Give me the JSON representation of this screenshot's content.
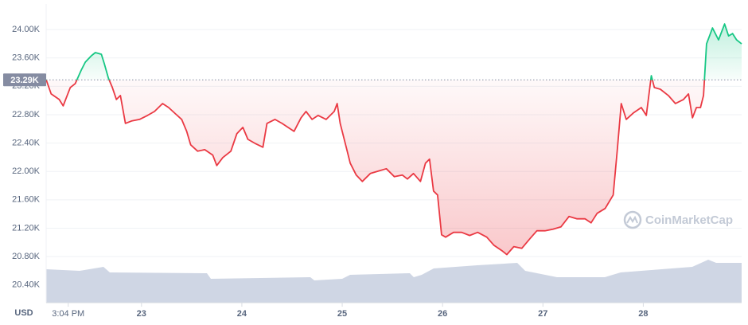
{
  "chart_data": {
    "type": "line",
    "currency": "USD",
    "watermark": "CoinMarketCap",
    "color_up": "#16c784",
    "color_down": "#ea3943",
    "grid": true,
    "reference": {
      "value": 23290,
      "label": "23.29K"
    },
    "xlim": [
      22.05,
      28.98
    ],
    "xticks": [
      {
        "value": 22.27,
        "label": "3:04 PM"
      },
      23,
      24,
      25,
      26,
      27,
      28
    ],
    "ylim": [
      20150,
      24360
    ],
    "yticks": [
      {
        "value": 20400,
        "label": "20.40K"
      },
      {
        "value": 20800,
        "label": "20.80K"
      },
      {
        "value": 21200,
        "label": "21.20K"
      },
      {
        "value": 21600,
        "label": "21.60K"
      },
      {
        "value": 22000,
        "label": "22.00K"
      },
      {
        "value": 22400,
        "label": "22.40K"
      },
      {
        "value": 22800,
        "label": "22.80K"
      },
      {
        "value": 23200,
        "label": "23.20K"
      },
      {
        "value": 23600,
        "label": "23.60K"
      },
      {
        "value": 24000,
        "label": "24.00K"
      }
    ],
    "x": [
      22.05,
      22.1,
      22.18,
      22.22,
      22.29,
      22.34,
      22.4,
      22.44,
      22.5,
      22.54,
      22.6,
      22.63,
      22.67,
      22.71,
      22.75,
      22.79,
      22.84,
      22.9,
      22.98,
      23.06,
      23.13,
      23.21,
      23.27,
      23.33,
      23.4,
      23.45,
      23.49,
      23.56,
      23.63,
      23.71,
      23.75,
      23.81,
      23.89,
      23.95,
      24.01,
      24.06,
      24.13,
      24.21,
      24.25,
      24.33,
      24.4,
      24.46,
      24.52,
      24.59,
      24.64,
      24.7,
      24.76,
      24.84,
      24.92,
      24.95,
      24.98,
      25.04,
      25.08,
      25.14,
      25.2,
      25.28,
      25.36,
      25.44,
      25.52,
      25.6,
      25.65,
      25.71,
      25.78,
      25.83,
      25.87,
      25.91,
      25.95,
      25.99,
      26.03,
      26.11,
      26.19,
      26.27,
      26.35,
      26.44,
      26.51,
      26.59,
      26.64,
      26.71,
      26.79,
      26.87,
      26.94,
      27.02,
      27.1,
      27.18,
      27.26,
      27.34,
      27.42,
      27.48,
      27.54,
      27.62,
      27.7,
      27.74,
      27.78,
      27.83,
      27.9,
      27.98,
      28.03,
      28.08,
      28.11,
      28.17,
      28.25,
      28.32,
      28.4,
      28.45,
      28.49,
      28.53,
      28.57,
      28.6,
      28.63,
      28.69,
      28.75,
      28.81,
      28.85,
      28.89,
      28.93,
      28.98
    ],
    "values": [
      23294,
      23092,
      23014,
      22924,
      23182,
      23238,
      23428,
      23540,
      23630,
      23675,
      23652,
      23518,
      23316,
      23182,
      23014,
      23070,
      22677,
      22711,
      22733,
      22789,
      22845,
      22957,
      22901,
      22823,
      22733,
      22565,
      22375,
      22285,
      22307,
      22229,
      22083,
      22195,
      22285,
      22531,
      22621,
      22453,
      22397,
      22341,
      22677,
      22733,
      22677,
      22621,
      22565,
      22756,
      22845,
      22733,
      22789,
      22733,
      22845,
      22957,
      22677,
      22341,
      22117,
      21949,
      21859,
      21971,
      22005,
      22038,
      21926,
      21949,
      21893,
      21971,
      21859,
      22117,
      22173,
      21724,
      21668,
      21108,
      21074,
      21141,
      21141,
      21097,
      21141,
      21074,
      20962,
      20884,
      20828,
      20940,
      20917,
      21052,
      21164,
      21164,
      21186,
      21220,
      21366,
      21332,
      21332,
      21276,
      21410,
      21478,
      21668,
      22285,
      22957,
      22733,
      22823,
      22901,
      22789,
      23350,
      23182,
      23159,
      23070,
      22957,
      23014,
      23092,
      22756,
      22901,
      22901,
      23070,
      23798,
      24022,
      23854,
      24078,
      23910,
      23944,
      23854,
      23798
    ]
  }
}
